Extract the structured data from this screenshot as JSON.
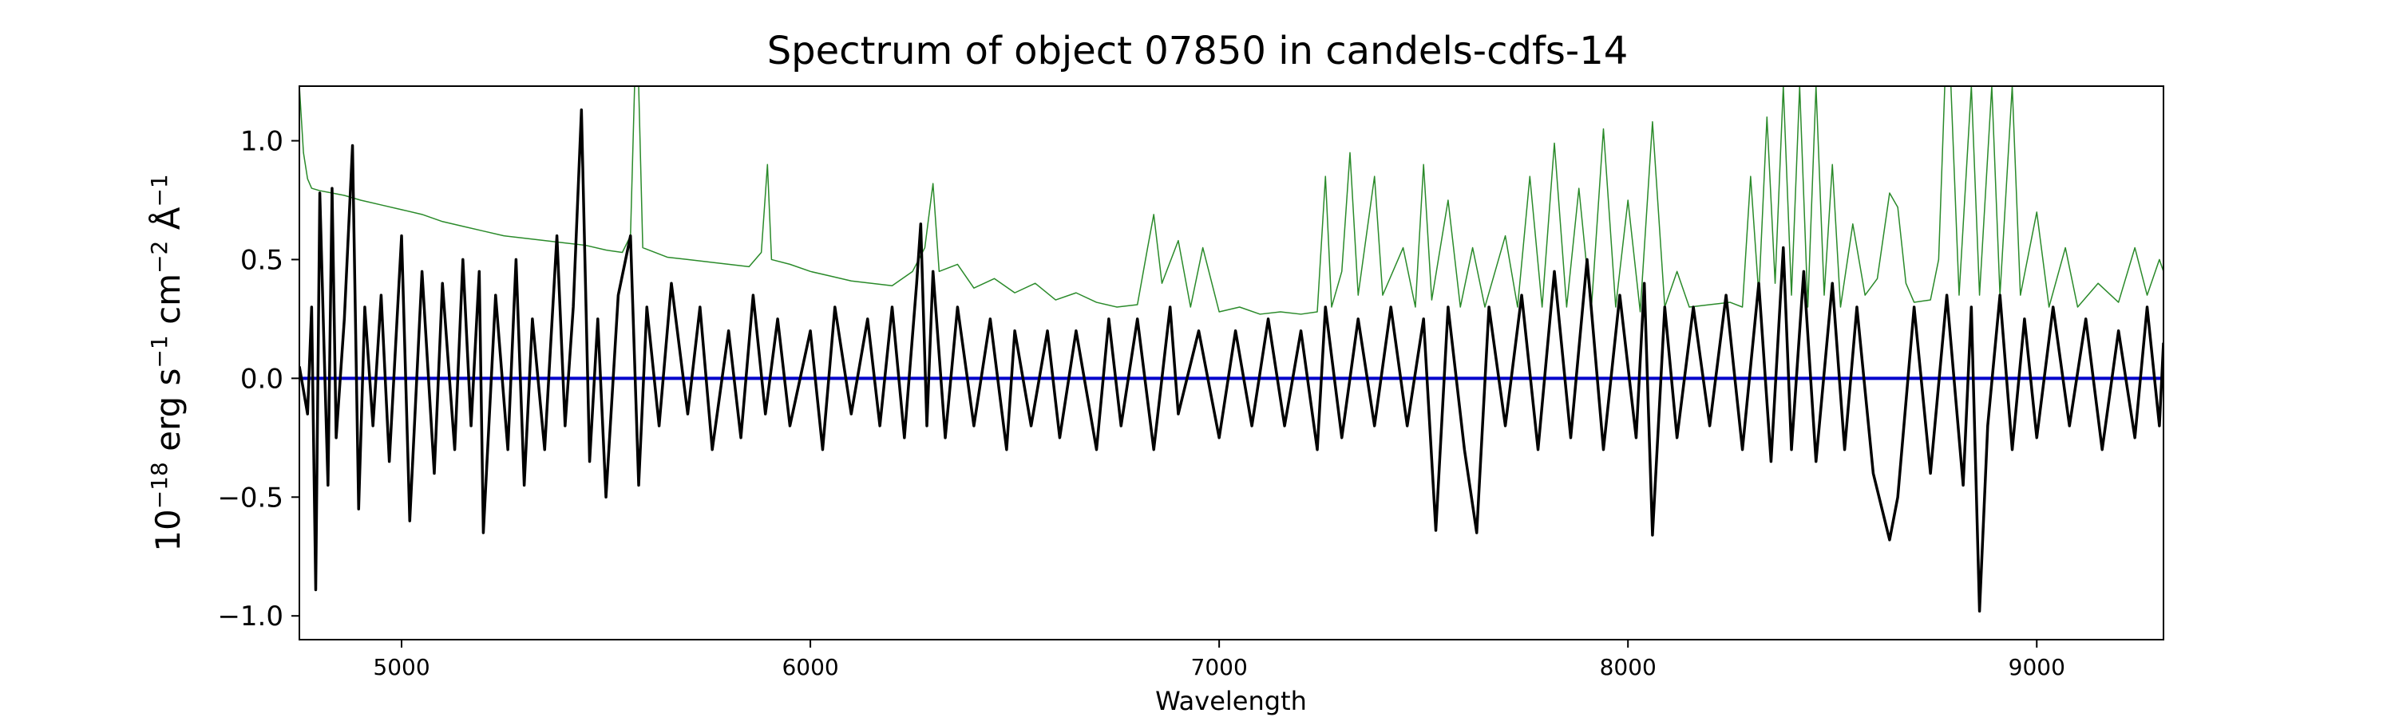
{
  "chart_data": {
    "type": "line",
    "title": "Spectrum of object 07850 in candels-cdfs-14",
    "xlabel": "Wavelength",
    "ylabel": {
      "base": "10",
      "exp_base": "−18",
      "erg": " erg s",
      "exp_s": "−1",
      "cm": " cm",
      "exp_cm": "−2",
      "ang": " Å",
      "exp_ang": "−1"
    },
    "xlim": [
      4750,
      9310
    ],
    "ylim": [
      -1.1,
      1.23
    ],
    "x_ticks": [
      5000,
      6000,
      7000,
      8000,
      9000
    ],
    "x_tick_labels": [
      "5000",
      "6000",
      "7000",
      "8000",
      "9000"
    ],
    "y_ticks": [
      -1.0,
      -0.5,
      0.0,
      0.5,
      1.0
    ],
    "y_tick_labels": [
      "−1.0",
      "−0.5",
      "0.0",
      "0.5",
      "1.0"
    ],
    "grid": false,
    "legend": "none",
    "series": [
      {
        "key": "error",
        "color": "#2a8a2a",
        "points": [
          [
            4750,
            1.23
          ],
          [
            4760,
            0.95
          ],
          [
            4770,
            0.84
          ],
          [
            4780,
            0.8
          ],
          [
            4800,
            0.79
          ],
          [
            4830,
            0.78
          ],
          [
            4860,
            0.77
          ],
          [
            4900,
            0.75
          ],
          [
            4950,
            0.73
          ],
          [
            5000,
            0.71
          ],
          [
            5050,
            0.69
          ],
          [
            5100,
            0.66
          ],
          [
            5150,
            0.64
          ],
          [
            5200,
            0.62
          ],
          [
            5250,
            0.6
          ],
          [
            5300,
            0.59
          ],
          [
            5350,
            0.58
          ],
          [
            5400,
            0.57
          ],
          [
            5450,
            0.56
          ],
          [
            5500,
            0.54
          ],
          [
            5540,
            0.53
          ],
          [
            5560,
            0.6
          ],
          [
            5570,
            1.23
          ],
          [
            5580,
            1.23
          ],
          [
            5590,
            0.55
          ],
          [
            5650,
            0.51
          ],
          [
            5700,
            0.5
          ],
          [
            5750,
            0.49
          ],
          [
            5800,
            0.48
          ],
          [
            5850,
            0.47
          ],
          [
            5880,
            0.53
          ],
          [
            5895,
            0.9
          ],
          [
            5905,
            0.5
          ],
          [
            5950,
            0.48
          ],
          [
            6000,
            0.45
          ],
          [
            6050,
            0.43
          ],
          [
            6100,
            0.41
          ],
          [
            6150,
            0.4
          ],
          [
            6200,
            0.39
          ],
          [
            6250,
            0.45
          ],
          [
            6280,
            0.55
          ],
          [
            6300,
            0.82
          ],
          [
            6315,
            0.45
          ],
          [
            6360,
            0.48
          ],
          [
            6400,
            0.38
          ],
          [
            6450,
            0.42
          ],
          [
            6500,
            0.36
          ],
          [
            6550,
            0.4
          ],
          [
            6600,
            0.33
          ],
          [
            6650,
            0.36
          ],
          [
            6700,
            0.32
          ],
          [
            6750,
            0.3
          ],
          [
            6800,
            0.31
          ],
          [
            6825,
            0.55
          ],
          [
            6840,
            0.69
          ],
          [
            6860,
            0.4
          ],
          [
            6900,
            0.58
          ],
          [
            6930,
            0.3
          ],
          [
            6960,
            0.55
          ],
          [
            7000,
            0.28
          ],
          [
            7050,
            0.3
          ],
          [
            7100,
            0.27
          ],
          [
            7150,
            0.28
          ],
          [
            7200,
            0.27
          ],
          [
            7240,
            0.28
          ],
          [
            7260,
            0.85
          ],
          [
            7275,
            0.3
          ],
          [
            7300,
            0.45
          ],
          [
            7320,
            0.95
          ],
          [
            7340,
            0.35
          ],
          [
            7380,
            0.85
          ],
          [
            7400,
            0.35
          ],
          [
            7450,
            0.55
          ],
          [
            7480,
            0.3
          ],
          [
            7500,
            0.9
          ],
          [
            7520,
            0.33
          ],
          [
            7560,
            0.75
          ],
          [
            7590,
            0.3
          ],
          [
            7620,
            0.55
          ],
          [
            7650,
            0.3
          ],
          [
            7700,
            0.6
          ],
          [
            7730,
            0.3
          ],
          [
            7760,
            0.85
          ],
          [
            7790,
            0.3
          ],
          [
            7820,
            0.99
          ],
          [
            7850,
            0.3
          ],
          [
            7880,
            0.8
          ],
          [
            7910,
            0.28
          ],
          [
            7940,
            1.05
          ],
          [
            7970,
            0.3
          ],
          [
            8000,
            0.75
          ],
          [
            8030,
            0.28
          ],
          [
            8060,
            1.08
          ],
          [
            8090,
            0.3
          ],
          [
            8120,
            0.45
          ],
          [
            8150,
            0.3
          ],
          [
            8200,
            0.31
          ],
          [
            8250,
            0.32
          ],
          [
            8280,
            0.3
          ],
          [
            8300,
            0.85
          ],
          [
            8320,
            0.35
          ],
          [
            8340,
            1.1
          ],
          [
            8360,
            0.4
          ],
          [
            8380,
            1.23
          ],
          [
            8400,
            0.35
          ],
          [
            8420,
            1.23
          ],
          [
            8440,
            0.3
          ],
          [
            8460,
            1.23
          ],
          [
            8480,
            0.35
          ],
          [
            8500,
            0.9
          ],
          [
            8520,
            0.3
          ],
          [
            8550,
            0.65
          ],
          [
            8580,
            0.35
          ],
          [
            8610,
            0.42
          ],
          [
            8640,
            0.78
          ],
          [
            8660,
            0.72
          ],
          [
            8680,
            0.4
          ],
          [
            8700,
            0.32
          ],
          [
            8740,
            0.33
          ],
          [
            8760,
            0.5
          ],
          [
            8775,
            1.23
          ],
          [
            8790,
            1.23
          ],
          [
            8810,
            0.35
          ],
          [
            8840,
            1.23
          ],
          [
            8860,
            0.35
          ],
          [
            8890,
            1.23
          ],
          [
            8910,
            0.35
          ],
          [
            8940,
            1.23
          ],
          [
            8960,
            0.35
          ],
          [
            9000,
            0.7
          ],
          [
            9030,
            0.3
          ],
          [
            9070,
            0.55
          ],
          [
            9100,
            0.3
          ],
          [
            9150,
            0.4
          ],
          [
            9200,
            0.32
          ],
          [
            9240,
            0.55
          ],
          [
            9270,
            0.35
          ],
          [
            9300,
            0.5
          ],
          [
            9310,
            0.45
          ]
        ]
      },
      {
        "key": "model",
        "color": "#0000cc",
        "points": [
          [
            4750,
            0.0
          ],
          [
            9310,
            0.0
          ]
        ]
      },
      {
        "key": "flux",
        "color": "#000000",
        "points": [
          [
            4750,
            0.05
          ],
          [
            4770,
            -0.15
          ],
          [
            4780,
            0.3
          ],
          [
            4790,
            -0.89
          ],
          [
            4800,
            0.78
          ],
          [
            4810,
            0.15
          ],
          [
            4820,
            -0.45
          ],
          [
            4830,
            0.8
          ],
          [
            4840,
            -0.25
          ],
          [
            4860,
            0.25
          ],
          [
            4880,
            0.98
          ],
          [
            4895,
            -0.55
          ],
          [
            4910,
            0.3
          ],
          [
            4930,
            -0.2
          ],
          [
            4950,
            0.35
          ],
          [
            4970,
            -0.35
          ],
          [
            5000,
            0.6
          ],
          [
            5020,
            -0.6
          ],
          [
            5050,
            0.45
          ],
          [
            5080,
            -0.4
          ],
          [
            5100,
            0.4
          ],
          [
            5130,
            -0.3
          ],
          [
            5150,
            0.5
          ],
          [
            5170,
            -0.2
          ],
          [
            5190,
            0.45
          ],
          [
            5200,
            -0.65
          ],
          [
            5230,
            0.35
          ],
          [
            5260,
            -0.3
          ],
          [
            5280,
            0.5
          ],
          [
            5300,
            -0.45
          ],
          [
            5320,
            0.25
          ],
          [
            5350,
            -0.3
          ],
          [
            5380,
            0.6
          ],
          [
            5400,
            -0.2
          ],
          [
            5420,
            0.3
          ],
          [
            5440,
            1.13
          ],
          [
            5460,
            -0.35
          ],
          [
            5480,
            0.25
          ],
          [
            5500,
            -0.5
          ],
          [
            5530,
            0.35
          ],
          [
            5560,
            0.6
          ],
          [
            5580,
            -0.45
          ],
          [
            5600,
            0.3
          ],
          [
            5630,
            -0.2
          ],
          [
            5660,
            0.4
          ],
          [
            5700,
            -0.15
          ],
          [
            5730,
            0.3
          ],
          [
            5760,
            -0.3
          ],
          [
            5800,
            0.2
          ],
          [
            5830,
            -0.25
          ],
          [
            5860,
            0.35
          ],
          [
            5890,
            -0.15
          ],
          [
            5920,
            0.25
          ],
          [
            5950,
            -0.2
          ],
          [
            6000,
            0.2
          ],
          [
            6030,
            -0.3
          ],
          [
            6060,
            0.3
          ],
          [
            6100,
            -0.15
          ],
          [
            6140,
            0.25
          ],
          [
            6170,
            -0.2
          ],
          [
            6200,
            0.3
          ],
          [
            6230,
            -0.25
          ],
          [
            6260,
            0.4
          ],
          [
            6270,
            0.65
          ],
          [
            6285,
            -0.2
          ],
          [
            6300,
            0.45
          ],
          [
            6330,
            -0.25
          ],
          [
            6360,
            0.3
          ],
          [
            6400,
            -0.2
          ],
          [
            6440,
            0.25
          ],
          [
            6480,
            -0.3
          ],
          [
            6500,
            0.2
          ],
          [
            6540,
            -0.2
          ],
          [
            6580,
            0.2
          ],
          [
            6610,
            -0.25
          ],
          [
            6650,
            0.2
          ],
          [
            6700,
            -0.3
          ],
          [
            6730,
            0.25
          ],
          [
            6760,
            -0.2
          ],
          [
            6800,
            0.25
          ],
          [
            6840,
            -0.3
          ],
          [
            6880,
            0.3
          ],
          [
            6900,
            -0.15
          ],
          [
            6950,
            0.2
          ],
          [
            7000,
            -0.25
          ],
          [
            7040,
            0.2
          ],
          [
            7080,
            -0.2
          ],
          [
            7120,
            0.25
          ],
          [
            7160,
            -0.2
          ],
          [
            7200,
            0.2
          ],
          [
            7240,
            -0.3
          ],
          [
            7260,
            0.3
          ],
          [
            7300,
            -0.25
          ],
          [
            7340,
            0.25
          ],
          [
            7380,
            -0.2
          ],
          [
            7420,
            0.3
          ],
          [
            7460,
            -0.2
          ],
          [
            7500,
            0.25
          ],
          [
            7530,
            -0.64
          ],
          [
            7560,
            0.3
          ],
          [
            7600,
            -0.3
          ],
          [
            7630,
            -0.65
          ],
          [
            7660,
            0.3
          ],
          [
            7700,
            -0.2
          ],
          [
            7740,
            0.35
          ],
          [
            7780,
            -0.3
          ],
          [
            7820,
            0.45
          ],
          [
            7860,
            -0.25
          ],
          [
            7900,
            0.5
          ],
          [
            7940,
            -0.3
          ],
          [
            7980,
            0.35
          ],
          [
            8020,
            -0.25
          ],
          [
            8040,
            0.4
          ],
          [
            8060,
            -0.66
          ],
          [
            8090,
            0.3
          ],
          [
            8120,
            -0.25
          ],
          [
            8160,
            0.3
          ],
          [
            8200,
            -0.2
          ],
          [
            8240,
            0.35
          ],
          [
            8280,
            -0.3
          ],
          [
            8320,
            0.4
          ],
          [
            8350,
            -0.35
          ],
          [
            8380,
            0.55
          ],
          [
            8400,
            -0.3
          ],
          [
            8430,
            0.45
          ],
          [
            8460,
            -0.35
          ],
          [
            8500,
            0.4
          ],
          [
            8530,
            -0.3
          ],
          [
            8560,
            0.3
          ],
          [
            8600,
            -0.4
          ],
          [
            8640,
            -0.68
          ],
          [
            8660,
            -0.5
          ],
          [
            8700,
            0.3
          ],
          [
            8740,
            -0.4
          ],
          [
            8780,
            0.35
          ],
          [
            8820,
            -0.45
          ],
          [
            8840,
            0.3
          ],
          [
            8860,
            -0.98
          ],
          [
            8880,
            -0.2
          ],
          [
            8910,
            0.35
          ],
          [
            8940,
            -0.3
          ],
          [
            8970,
            0.25
          ],
          [
            9000,
            -0.25
          ],
          [
            9040,
            0.3
          ],
          [
            9080,
            -0.2
          ],
          [
            9120,
            0.25
          ],
          [
            9160,
            -0.3
          ],
          [
            9200,
            0.2
          ],
          [
            9240,
            -0.25
          ],
          [
            9270,
            0.3
          ],
          [
            9300,
            -0.2
          ],
          [
            9310,
            0.15
          ]
        ]
      }
    ]
  }
}
